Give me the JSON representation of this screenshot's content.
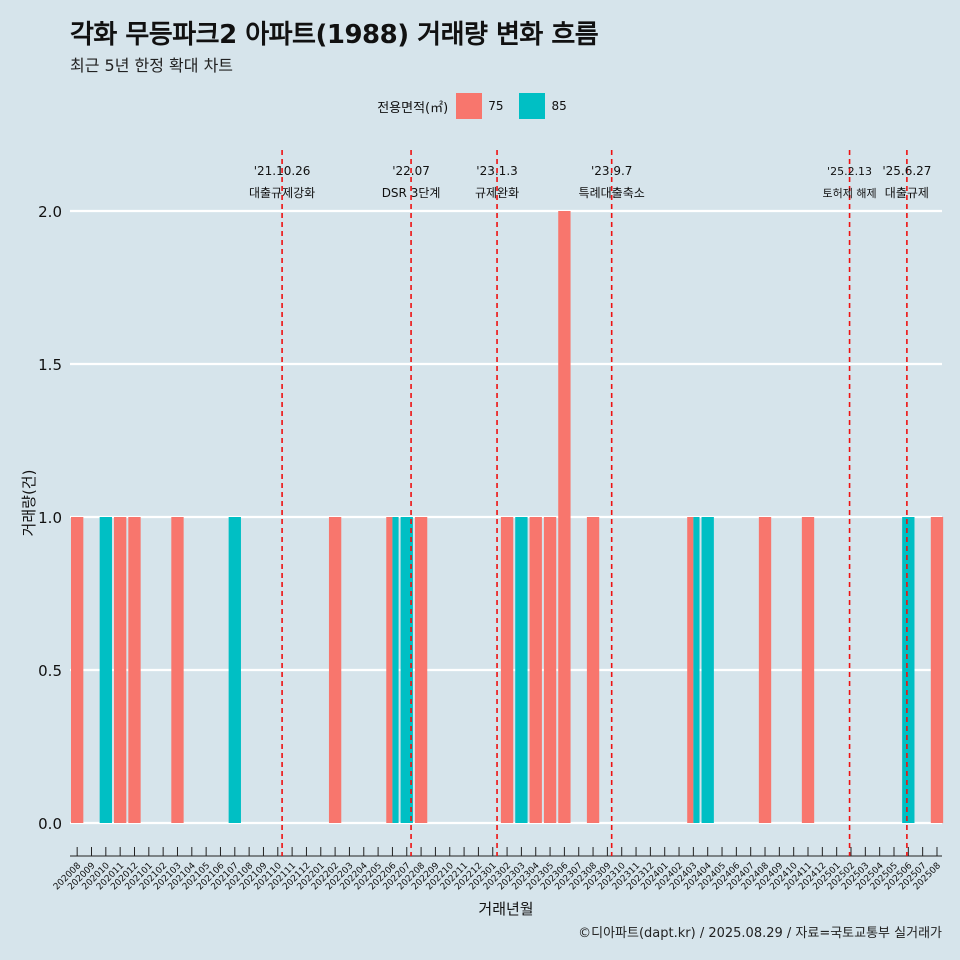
{
  "title": "각화 무등파크2 아파트(1988) 거래량 변화 흐름",
  "subtitle": "최근 5년 한정 확대 차트",
  "caption": "©디아파트(dapt.kr) / 2025.08.29 / 자료=국토교통부 실거래가",
  "colors": {
    "background": "#d6e4eb",
    "s75": "#f8766d",
    "s85": "#00bfc4",
    "event_line": "#ee1111",
    "grid": "#ffffff"
  },
  "chart_data": {
    "type": "bar",
    "title": "각화 무등파크2 아파트(1988) 거래량 변화 흐름",
    "subtitle": "최근 5년 한정 확대 차트",
    "xlabel": "거래년월",
    "ylabel": "거래량(건)",
    "ylim": [
      0,
      2
    ],
    "yticks": [
      "0.0",
      "0.5",
      "1.0",
      "1.5",
      "2.0"
    ],
    "legend_title": "전용면적(㎡)",
    "legend_position": "top",
    "grid": true,
    "categories": [
      "202008",
      "202009",
      "202010",
      "202011",
      "202012",
      "202101",
      "202102",
      "202103",
      "202104",
      "202105",
      "202106",
      "202107",
      "202108",
      "202109",
      "202110",
      "202111",
      "202112",
      "202201",
      "202202",
      "202203",
      "202204",
      "202205",
      "202206",
      "202207",
      "202208",
      "202209",
      "202210",
      "202211",
      "202212",
      "202301",
      "202302",
      "202303",
      "202304",
      "202305",
      "202306",
      "202307",
      "202308",
      "202309",
      "202310",
      "202311",
      "202312",
      "202401",
      "202402",
      "202403",
      "202404",
      "202405",
      "202406",
      "202407",
      "202408",
      "202409",
      "202410",
      "202411",
      "202412",
      "202501",
      "202502",
      "202503",
      "202504",
      "202505",
      "202506",
      "202507",
      "202508"
    ],
    "series": [
      {
        "name": "75",
        "values": [
          1,
          0,
          0,
          1,
          1,
          0,
          0,
          1,
          0,
          0,
          0,
          0,
          0,
          0,
          0,
          0,
          0,
          0,
          1,
          0,
          0,
          0,
          1,
          0,
          1,
          0,
          0,
          0,
          0,
          0,
          1,
          0,
          1,
          1,
          2,
          0,
          1,
          0,
          0,
          0,
          0,
          0,
          0,
          1,
          0,
          0,
          0,
          0,
          1,
          0,
          0,
          1,
          0,
          0,
          0,
          0,
          0,
          0,
          0,
          0,
          1
        ]
      },
      {
        "name": "85",
        "values": [
          0,
          0,
          1,
          0,
          0,
          0,
          0,
          0,
          0,
          0,
          0,
          1,
          0,
          0,
          0,
          0,
          0,
          0,
          0,
          0,
          0,
          0,
          1,
          1,
          0,
          0,
          0,
          0,
          0,
          0,
          0,
          1,
          0,
          0,
          0,
          0,
          0,
          0,
          0,
          0,
          0,
          0,
          0,
          1,
          1,
          0,
          0,
          0,
          0,
          0,
          0,
          0,
          0,
          0,
          0,
          0,
          0,
          0,
          1,
          0,
          0
        ]
      }
    ],
    "events": [
      {
        "date": "'21.10.26",
        "label": "대출규제강화",
        "x": 14.8
      },
      {
        "date": "'22.07",
        "label": "DSR 3단계",
        "x": 23.8
      },
      {
        "date": "'23.1.3",
        "label": "규제완화",
        "x": 29.8
      },
      {
        "date": "'23.9.7",
        "label": "특례대출축소",
        "x": 37.8
      },
      {
        "date": "'25.2.13",
        "label": "토허제 해제",
        "x": 54.4
      },
      {
        "date": "'25.6.27",
        "label": "대출규제",
        "x": 58.4
      }
    ]
  }
}
